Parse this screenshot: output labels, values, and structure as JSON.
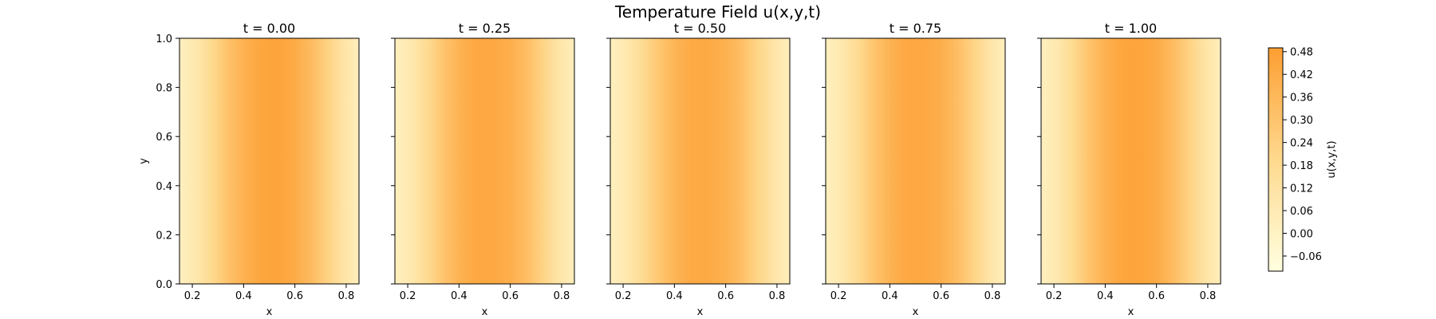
{
  "figure": {
    "title": "Temperature Field u(x,y,t)"
  },
  "chart_data": {
    "type": "heatmap",
    "title": "Temperature Field u(x,y,t)",
    "xlabel": "x",
    "ylabel": "y",
    "xlim": [
      0.15,
      0.85
    ],
    "ylim": [
      0.0,
      1.0
    ],
    "x_ticks": [
      "0.2",
      "0.4",
      "0.6",
      "0.8"
    ],
    "y_ticks": [
      "0.0",
      "0.2",
      "0.4",
      "0.6",
      "0.8",
      "1.0"
    ],
    "colormap": "light-yellow-to-orange",
    "panels": [
      {
        "title": "t = 0.00",
        "t": 0.0,
        "x_profile": [
          0.02,
          0.08,
          0.19,
          0.31,
          0.4,
          0.45,
          0.46,
          0.43,
          0.35,
          0.24,
          0.12,
          0.03
        ],
        "y_profile": [
          1,
          1,
          1,
          1,
          1,
          1
        ],
        "peak": 0.47
      },
      {
        "title": "t = 0.25",
        "t": 0.25,
        "x_profile": [
          0.02,
          0.08,
          0.18,
          0.3,
          0.39,
          0.44,
          0.44,
          0.41,
          0.34,
          0.23,
          0.11,
          0.03
        ],
        "y_profile": [
          1,
          1,
          1,
          1,
          1,
          1
        ],
        "peak": 0.45
      },
      {
        "title": "t = 0.50",
        "t": 0.5,
        "x_profile": [
          0.02,
          0.08,
          0.18,
          0.29,
          0.38,
          0.43,
          0.43,
          0.4,
          0.33,
          0.22,
          0.11,
          0.03
        ],
        "y_profile": [
          1,
          1,
          1,
          1,
          1,
          1
        ],
        "peak": 0.44
      },
      {
        "title": "t = 0.75",
        "t": 0.75,
        "x_profile": [
          0.02,
          0.08,
          0.18,
          0.3,
          0.39,
          0.44,
          0.44,
          0.41,
          0.34,
          0.23,
          0.11,
          0.03
        ],
        "y_profile": [
          1,
          1,
          1,
          1,
          1,
          1
        ],
        "peak": 0.45
      },
      {
        "title": "t = 1.00",
        "t": 1.0,
        "x_profile": [
          0.02,
          0.08,
          0.19,
          0.31,
          0.4,
          0.45,
          0.46,
          0.43,
          0.35,
          0.24,
          0.12,
          0.03
        ],
        "y_profile": [
          1,
          1,
          1,
          1,
          1,
          1
        ],
        "peak": 0.47
      }
    ],
    "colorbar": {
      "label": "u(x,y,t)",
      "ticks": [
        "−0.06",
        "0.00",
        "0.06",
        "0.12",
        "0.18",
        "0.24",
        "0.30",
        "0.36",
        "0.42",
        "0.48"
      ],
      "range": [
        -0.1,
        0.49
      ]
    },
    "colors": {
      "low": "#ffffe0",
      "mid": "#fed98e",
      "high": "#fd9e32"
    },
    "grid": false,
    "legend": "none"
  }
}
